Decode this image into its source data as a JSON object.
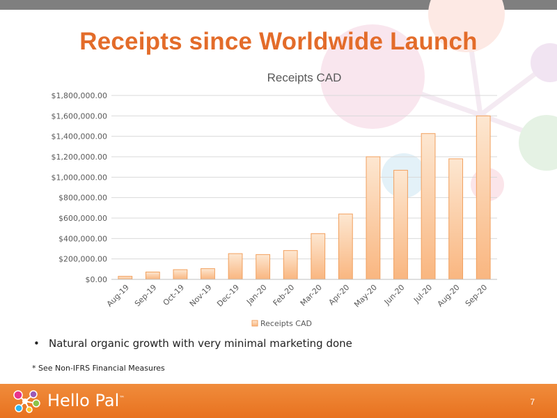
{
  "slide": {
    "title": "Receipts since Worldwide Launch",
    "bullet": "Natural organic growth with very minimal marketing done",
    "footnote": "* See Non-IFRS Financial Measures",
    "page_number": "7"
  },
  "footer": {
    "logo_text": "Hello Pal",
    "logo_tm": "™"
  },
  "colors": {
    "title": "#e36c2a",
    "footer": "#ef7d2f",
    "bar_top": "#fde7d1",
    "bar_bottom": "#f9b680",
    "bar_border": "#f2a05e"
  },
  "chart_data": {
    "type": "bar",
    "title": "Receipts CAD",
    "categories": [
      "Aug-19",
      "Sep-19",
      "Oct-19",
      "Nov-19",
      "Dec-19",
      "Jan-20",
      "Feb-20",
      "Mar-20",
      "Apr-20",
      "May-20",
      "Jun-20",
      "Jul-20",
      "Aug-20",
      "Sep-20"
    ],
    "series": [
      {
        "name": "Receipts CAD",
        "values": [
          30000,
          72000,
          95000,
          105000,
          252000,
          243000,
          282000,
          448000,
          640000,
          1200000,
          1068000,
          1427000,
          1180000,
          1600000
        ]
      }
    ],
    "ylim": [
      0,
      1800000
    ],
    "yticks": [
      0,
      200000,
      400000,
      600000,
      800000,
      1000000,
      1200000,
      1400000,
      1600000,
      1800000
    ],
    "ytick_labels": [
      "$0.00",
      "$200,000.00",
      "$400,000.00",
      "$600,000.00",
      "$800,000.00",
      "$1,000,000.00",
      "$1,200,000.00",
      "$1,400,000.00",
      "$1,600,000.00",
      "$1,800,000.00"
    ],
    "grid": true,
    "legend": "bottom"
  }
}
